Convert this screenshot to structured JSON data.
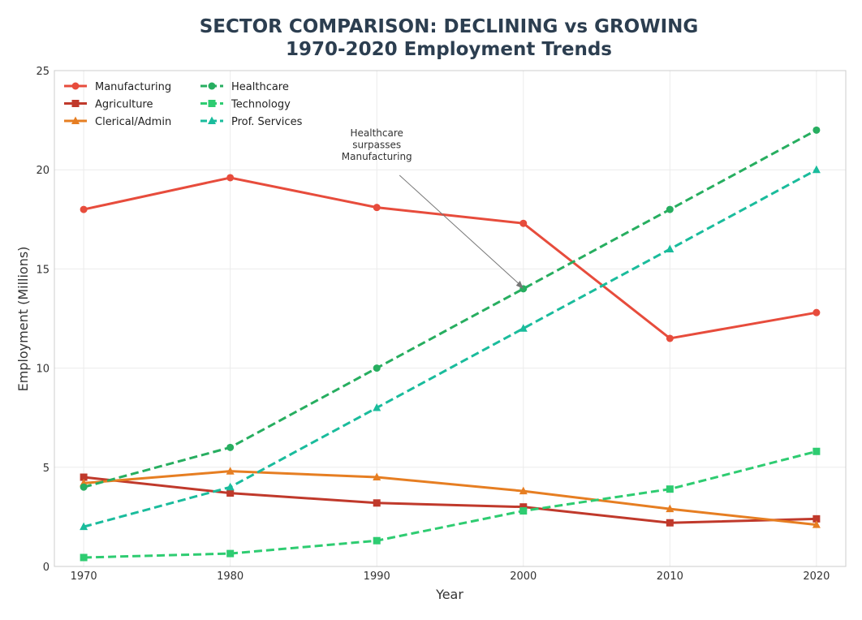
{
  "chart_data": {
    "type": "line",
    "title": "SECTOR COMPARISON: DECLINING vs GROWING",
    "subtitle": "1970-2020 Employment Trends",
    "xlabel": "Year",
    "ylabel": "Employment (Millions)",
    "x": [
      1970,
      1980,
      1990,
      2000,
      2010,
      2020
    ],
    "xlim": [
      1968,
      2022
    ],
    "ylim": [
      0,
      25
    ],
    "xticks": [
      1970,
      1980,
      1990,
      2000,
      2010,
      2020
    ],
    "yticks": [
      0,
      5,
      10,
      15,
      20,
      25
    ],
    "grid": true,
    "legend_position": "top-left",
    "series": [
      {
        "name": "Manufacturing",
        "values": [
          18.0,
          19.6,
          18.1,
          17.3,
          11.5,
          12.8
        ],
        "color": "#e74c3c",
        "dash": false,
        "marker": "circle"
      },
      {
        "name": "Agriculture",
        "values": [
          4.5,
          3.7,
          3.2,
          3.0,
          2.2,
          2.4
        ],
        "color": "#c0392b",
        "dash": false,
        "marker": "square"
      },
      {
        "name": "Clerical/Admin",
        "values": [
          4.2,
          4.8,
          4.5,
          3.8,
          2.9,
          2.1
        ],
        "color": "#e67e22",
        "dash": false,
        "marker": "triangle"
      },
      {
        "name": "Healthcare",
        "values": [
          4.0,
          6.0,
          10.0,
          14.0,
          18.0,
          22.0
        ],
        "color": "#27ae60",
        "dash": true,
        "marker": "circle"
      },
      {
        "name": "Technology",
        "values": [
          0.45,
          0.65,
          1.3,
          2.8,
          3.9,
          5.8
        ],
        "color": "#2ecc71",
        "dash": true,
        "marker": "square"
      },
      {
        "name": "Prof. Services",
        "values": [
          2.0,
          4.0,
          8.0,
          12.0,
          16.0,
          20.0
        ],
        "color": "#1abc9c",
        "dash": true,
        "marker": "triangle"
      }
    ],
    "annotation": {
      "text": [
        "Healthcare",
        "surpasses",
        "Manufacturing"
      ],
      "x": 2000,
      "y": 14.0,
      "text_x": 1990,
      "text_y": 21.2
    }
  }
}
